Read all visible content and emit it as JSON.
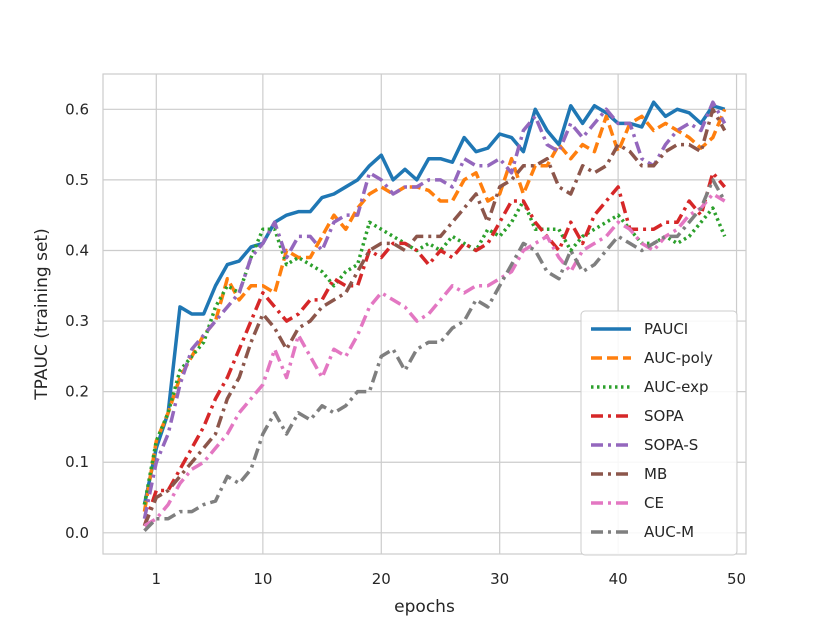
{
  "chart_data": {
    "type": "line",
    "title": "",
    "xlabel": "epochs",
    "ylabel": "TPAUC (training set)",
    "xlim": [
      -3.5,
      50.8
    ],
    "ylim": [
      -0.03,
      0.65
    ],
    "xticks": [
      1,
      10,
      20,
      30,
      40,
      50
    ],
    "yticks": [
      0.0,
      0.1,
      0.2,
      0.3,
      0.4,
      0.5,
      0.6
    ],
    "ytick_labels": [
      "0.0",
      "0.1",
      "0.2",
      "0.3",
      "0.4",
      "0.5",
      "0.6"
    ],
    "grid": true,
    "legend_position": "lower-right",
    "x": [
      0,
      1,
      2,
      3,
      4,
      5,
      6,
      7,
      8,
      9,
      10,
      11,
      12,
      13,
      14,
      15,
      16,
      17,
      18,
      19,
      20,
      21,
      22,
      23,
      24,
      25,
      26,
      27,
      28,
      29,
      30,
      31,
      32,
      33,
      34,
      35,
      36,
      37,
      38,
      39,
      40,
      41,
      42,
      43,
      44,
      45,
      46,
      47,
      48,
      49
    ],
    "series": [
      {
        "name": "PAUCI",
        "color": "#1f77b4",
        "style": "solid",
        "values": [
          0.04,
          0.12,
          0.17,
          0.32,
          0.31,
          0.31,
          0.35,
          0.38,
          0.385,
          0.405,
          0.41,
          0.44,
          0.45,
          0.455,
          0.455,
          0.475,
          0.48,
          0.49,
          0.5,
          0.52,
          0.535,
          0.5,
          0.515,
          0.5,
          0.53,
          0.53,
          0.525,
          0.56,
          0.54,
          0.545,
          0.565,
          0.56,
          0.54,
          0.6,
          0.57,
          0.55,
          0.605,
          0.58,
          0.605,
          0.595,
          0.58,
          0.58,
          0.575,
          0.61,
          0.59,
          0.6,
          0.595,
          0.58,
          0.605,
          0.6
        ]
      },
      {
        "name": "AUC-poly",
        "color": "#ff7f0e",
        "style": "dashed",
        "values": [
          0.03,
          0.13,
          0.17,
          0.22,
          0.25,
          0.28,
          0.3,
          0.36,
          0.33,
          0.35,
          0.35,
          0.34,
          0.4,
          0.39,
          0.39,
          0.42,
          0.45,
          0.43,
          0.46,
          0.48,
          0.49,
          0.48,
          0.49,
          0.49,
          0.485,
          0.47,
          0.47,
          0.5,
          0.51,
          0.47,
          0.48,
          0.53,
          0.48,
          0.52,
          0.52,
          0.55,
          0.53,
          0.55,
          0.54,
          0.59,
          0.54,
          0.58,
          0.59,
          0.57,
          0.58,
          0.57,
          0.56,
          0.545,
          0.56,
          0.6
        ]
      },
      {
        "name": "AUC-exp",
        "color": "#2ca02c",
        "style": "dotted",
        "values": [
          0.04,
          0.13,
          0.17,
          0.23,
          0.25,
          0.27,
          0.32,
          0.35,
          0.34,
          0.39,
          0.43,
          0.43,
          0.38,
          0.39,
          0.38,
          0.37,
          0.35,
          0.37,
          0.38,
          0.44,
          0.43,
          0.42,
          0.41,
          0.4,
          0.41,
          0.4,
          0.42,
          0.41,
          0.4,
          0.43,
          0.42,
          0.44,
          0.47,
          0.43,
          0.43,
          0.43,
          0.4,
          0.42,
          0.43,
          0.44,
          0.45,
          0.43,
          0.41,
          0.41,
          0.42,
          0.41,
          0.42,
          0.44,
          0.46,
          0.42
        ]
      },
      {
        "name": "SOPA",
        "color": "#d62728",
        "style": "dashdot",
        "values": [
          0.01,
          0.06,
          0.06,
          0.09,
          0.12,
          0.15,
          0.19,
          0.22,
          0.26,
          0.3,
          0.34,
          0.32,
          0.3,
          0.31,
          0.33,
          0.33,
          0.36,
          0.35,
          0.35,
          0.4,
          0.39,
          0.41,
          0.41,
          0.4,
          0.38,
          0.4,
          0.39,
          0.41,
          0.4,
          0.41,
          0.44,
          0.47,
          0.47,
          0.44,
          0.42,
          0.4,
          0.44,
          0.41,
          0.45,
          0.47,
          0.49,
          0.43,
          0.43,
          0.43,
          0.44,
          0.44,
          0.47,
          0.45,
          0.51,
          0.49
        ]
      },
      {
        "name": "SOPA-S",
        "color": "#9467bd",
        "style": "dashdot",
        "values": [
          0.02,
          0.1,
          0.14,
          0.21,
          0.26,
          0.28,
          0.3,
          0.32,
          0.34,
          0.39,
          0.41,
          0.44,
          0.39,
          0.42,
          0.42,
          0.4,
          0.44,
          0.45,
          0.45,
          0.51,
          0.5,
          0.48,
          0.49,
          0.49,
          0.5,
          0.5,
          0.49,
          0.53,
          0.52,
          0.52,
          0.53,
          0.51,
          0.57,
          0.59,
          0.55,
          0.54,
          0.58,
          0.56,
          0.58,
          0.6,
          0.58,
          0.58,
          0.53,
          0.52,
          0.55,
          0.57,
          0.58,
          0.57,
          0.61,
          0.58
        ]
      },
      {
        "name": "MB",
        "color": "#8c564b",
        "style": "dashdot",
        "values": [
          0.01,
          0.05,
          0.06,
          0.08,
          0.1,
          0.12,
          0.14,
          0.19,
          0.22,
          0.27,
          0.31,
          0.29,
          0.26,
          0.29,
          0.3,
          0.32,
          0.33,
          0.34,
          0.37,
          0.4,
          0.41,
          0.41,
          0.4,
          0.42,
          0.42,
          0.42,
          0.44,
          0.46,
          0.48,
          0.44,
          0.49,
          0.5,
          0.52,
          0.52,
          0.53,
          0.49,
          0.48,
          0.52,
          0.51,
          0.52,
          0.55,
          0.54,
          0.52,
          0.52,
          0.54,
          0.55,
          0.55,
          0.54,
          0.6,
          0.57
        ]
      },
      {
        "name": "CE",
        "color": "#e377c2",
        "style": "dashdot",
        "values": [
          0.01,
          0.02,
          0.04,
          0.07,
          0.09,
          0.1,
          0.12,
          0.14,
          0.17,
          0.19,
          0.21,
          0.26,
          0.22,
          0.28,
          0.25,
          0.22,
          0.26,
          0.25,
          0.28,
          0.32,
          0.34,
          0.33,
          0.32,
          0.3,
          0.31,
          0.33,
          0.35,
          0.34,
          0.35,
          0.35,
          0.36,
          0.37,
          0.4,
          0.41,
          0.42,
          0.39,
          0.37,
          0.4,
          0.41,
          0.42,
          0.44,
          0.43,
          0.41,
          0.4,
          0.42,
          0.43,
          0.45,
          0.46,
          0.48,
          0.47
        ]
      },
      {
        "name": "AUC-M",
        "color": "#7f7f7f",
        "style": "dashdot",
        "values": [
          0.003,
          0.02,
          0.02,
          0.03,
          0.03,
          0.04,
          0.045,
          0.08,
          0.07,
          0.09,
          0.14,
          0.17,
          0.14,
          0.17,
          0.16,
          0.18,
          0.17,
          0.18,
          0.2,
          0.2,
          0.25,
          0.26,
          0.23,
          0.26,
          0.27,
          0.27,
          0.29,
          0.3,
          0.33,
          0.32,
          0.35,
          0.38,
          0.41,
          0.4,
          0.37,
          0.36,
          0.4,
          0.37,
          0.38,
          0.4,
          0.42,
          0.41,
          0.4,
          0.41,
          0.42,
          0.42,
          0.44,
          0.46,
          0.5,
          0.47
        ]
      }
    ]
  }
}
